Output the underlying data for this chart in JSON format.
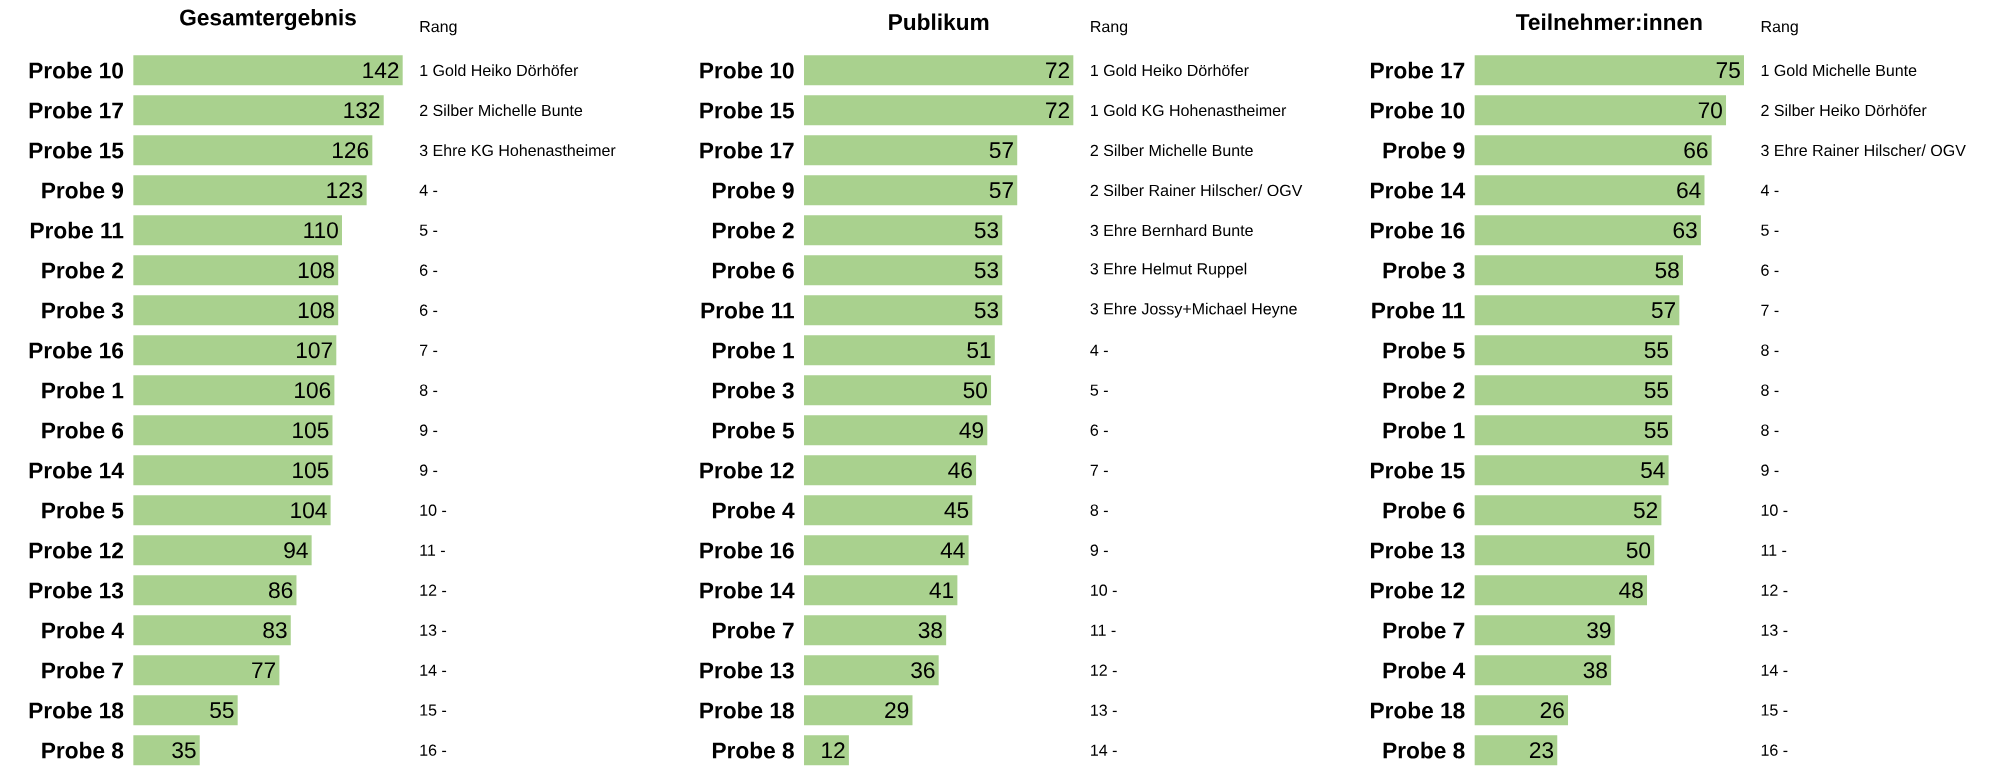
{
  "chart_data": [
    {
      "type": "bar",
      "orientation": "horizontal",
      "title": "Gesamtergebnis",
      "color": "#a9d18e",
      "data_labels": true,
      "categories": [
        "Probe 10",
        "Probe 17",
        "Probe 15",
        "Probe 9",
        "Probe 11",
        "Probe 2",
        "Probe 3",
        "Probe 16",
        "Probe 1",
        "Probe 6",
        "Probe 14",
        "Probe 5",
        "Probe 12",
        "Probe 13",
        "Probe 4",
        "Probe 7",
        "Probe 18",
        "Probe 8"
      ],
      "values": [
        142,
        132,
        126,
        123,
        110,
        108,
        108,
        107,
        106,
        105,
        105,
        104,
        94,
        86,
        83,
        77,
        55,
        35
      ],
      "annotations": [
        "Rang",
        "1 Gold Heiko Dörhöfer",
        "2 Silber Michelle Bunte",
        "3 Ehre KG Hohenastheimer",
        "4 -",
        "5 -",
        "6 -",
        "6 -",
        "7 -",
        "8 -",
        "9 -",
        "9 -",
        "10 -",
        "11 -",
        "12 -",
        "13 -",
        "14 -",
        "15 -",
        "16 -"
      ]
    },
    {
      "type": "bar",
      "orientation": "horizontal",
      "title": "Publikum",
      "color": "#a9d18e",
      "data_labels": true,
      "categories": [
        "Probe 10",
        "Probe 15",
        "Probe 17",
        "Probe 9",
        "Probe 2",
        "Probe 6",
        "Probe 11",
        "Probe 1",
        "Probe 3",
        "Probe 5",
        "Probe 12",
        "Probe 4",
        "Probe 16",
        "Probe 14",
        "Probe 7",
        "Probe 13",
        "Probe 18",
        "Probe 8"
      ],
      "values": [
        72,
        72,
        57,
        57,
        53,
        53,
        53,
        51,
        50,
        49,
        46,
        45,
        44,
        41,
        38,
        36,
        29,
        12
      ],
      "annotations": [
        "Rang",
        "1 Gold Heiko Dörhöfer",
        "1 Gold KG Hohenastheimer",
        "2 Silber Michelle Bunte",
        "2 Silber Rainer Hilscher/ OGV",
        "3 Ehre Bernhard Bunte",
        "3 Ehre Helmut Ruppel",
        "3 Ehre Jossy+Michael Heyne",
        "4 -",
        "5 -",
        "6 -",
        "7 -",
        "8 -",
        "9 -",
        "10 -",
        "11 -",
        "12 -",
        "13 -",
        "14 -"
      ]
    },
    {
      "type": "bar",
      "orientation": "horizontal",
      "title": "Teilnehmer:innen",
      "color": "#a9d18e",
      "data_labels": true,
      "categories": [
        "Probe 17",
        "Probe 10",
        "Probe 9",
        "Probe 14",
        "Probe 16",
        "Probe 3",
        "Probe 11",
        "Probe 5",
        "Probe 2",
        "Probe 1",
        "Probe 15",
        "Probe 6",
        "Probe 13",
        "Probe 12",
        "Probe 7",
        "Probe 4",
        "Probe 18",
        "Probe 8"
      ],
      "values": [
        75,
        70,
        66,
        64,
        63,
        58,
        57,
        55,
        55,
        55,
        54,
        52,
        50,
        48,
        39,
        38,
        26,
        23
      ],
      "annotations": [
        "Rang",
        "1 Gold Michelle Bunte",
        "2 Silber Heiko Dörhöfer",
        "3 Ehre Rainer Hilscher/ OGV",
        "4 -",
        "5 -",
        "6 -",
        "7 -",
        "8 -",
        "8 -",
        "8 -",
        "9 -",
        "10 -",
        "11 -",
        "12 -",
        "13 -",
        "14 -",
        "15 -",
        "16 -"
      ]
    }
  ]
}
